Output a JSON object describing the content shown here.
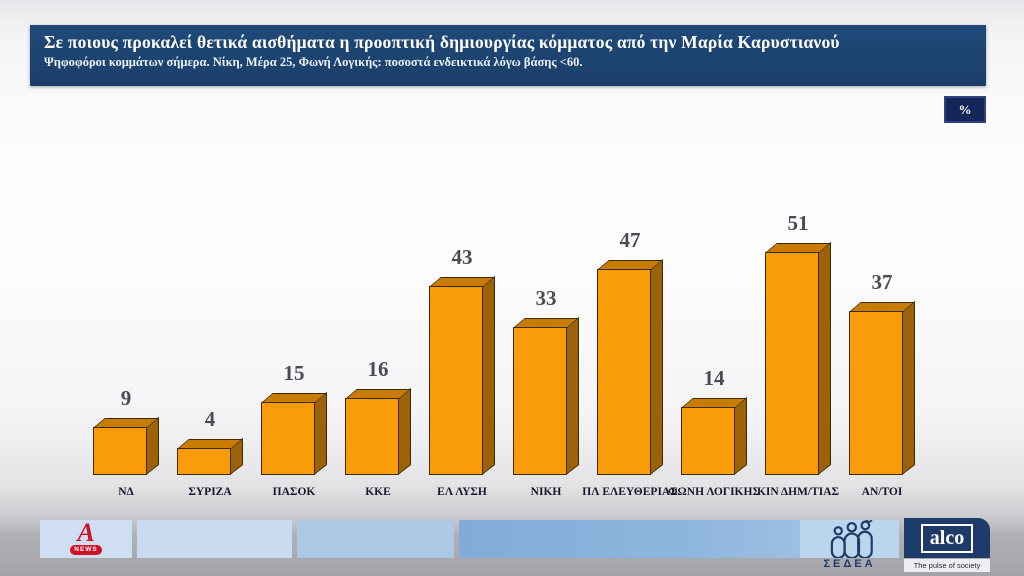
{
  "header": {
    "title": "Σε ποιους προκαλεί θετικά αισθήματα η προοπτική δημιουργίας κόμματος από την Μαρία Καρυστιανού",
    "subtitle": "Ψηφοφόροι κομμάτων σήμερα. Νίκη, Μέρα 25, Φωνή Λογικής: ποσοστά ενδεικτικά λόγω βάσης <60.",
    "bg_color": "#1d4470"
  },
  "percent_badge": "%",
  "chart_data": {
    "type": "bar",
    "title": "Σε ποιους προκαλεί θετικά αισθήματα η προοπτική δημιουργίας κόμματος από την Μαρία Καρυστιανού",
    "subtitle": "Ψηφοφόροι κομμάτων σήμερα. Νίκη, Μέρα 25, Φωνή Λογικής: ποσοστά ενδεικτικά λόγω βάσης <60.",
    "unit": "%",
    "categories": [
      "ΝΔ",
      "ΣΥΡΙΖΑ",
      "ΠΑΣΟΚ",
      "ΚΚΕ",
      "ΕΛ ΛΥΣΗ",
      "ΝΙΚΗ",
      "ΠΛ ΕΛΕΥΘΕΡΙΑΣ",
      "ΦΩΝΗ ΛΟΓΙΚΗΣ",
      "ΚΙΝ ΔΗΜ/ΤΙΑΣ",
      "ΑΝ/ΤΟΙ"
    ],
    "values": [
      9,
      4,
      15,
      16,
      43,
      33,
      47,
      14,
      51,
      37
    ],
    "ylim": [
      0,
      60
    ],
    "grid": false,
    "legend": false,
    "style": "3d-bar",
    "colors": {
      "bar_front": "#f99c08",
      "bar_top": "#c87c04",
      "bar_side": "#9c6208",
      "bar_outline": "#3a2a0c",
      "value_label": "#4b4b54",
      "category_label": "#17172c"
    }
  },
  "footer": {
    "alpha_logo": {
      "letter": "A",
      "badge": "NEWS"
    },
    "sedea": {
      "label": "ΣΕΔΕΑ"
    },
    "alco": {
      "label": "alco",
      "tagline": "The pulse of society"
    }
  }
}
